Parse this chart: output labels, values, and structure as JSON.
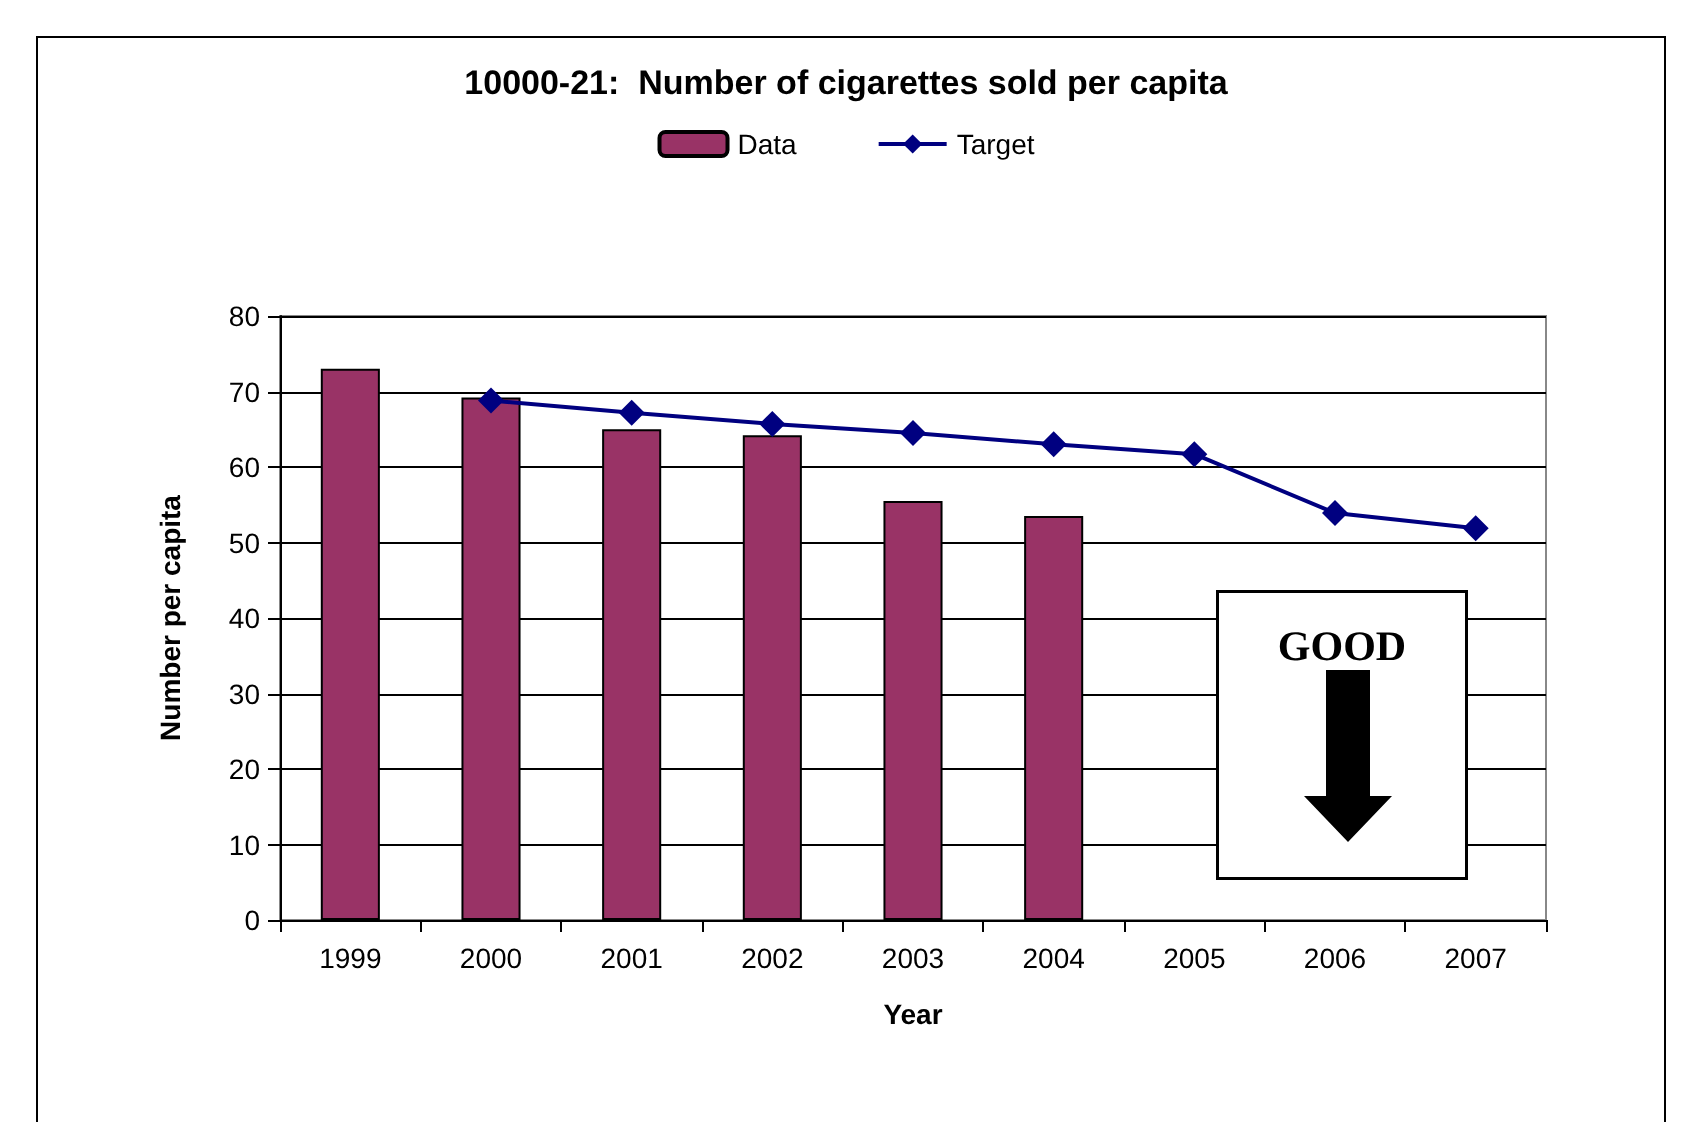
{
  "chart_data": {
    "type": "bar",
    "title": "10000-21:  Number of cigarettes sold per capita",
    "xlabel": "Year",
    "ylabel": "Number per capita",
    "categories": [
      "1999",
      "2000",
      "2001",
      "2002",
      "2003",
      "2004",
      "2005",
      "2006",
      "2007"
    ],
    "series": [
      {
        "name": "Data",
        "color": "#993366",
        "values": [
          73,
          69.2,
          65,
          64.2,
          55.5,
          53.5,
          null,
          null,
          null
        ]
      },
      {
        "name": "Target",
        "type": "line",
        "color": "#000080",
        "values": [
          null,
          68.8,
          67.2,
          65.7,
          64.5,
          63,
          61.7,
          53.9,
          51.9
        ]
      }
    ],
    "ylim": [
      0,
      80
    ],
    "yticks": [
      0,
      10,
      20,
      30,
      40,
      50,
      60,
      70,
      80
    ],
    "grid": "y",
    "legend": "top",
    "marker": "diamond",
    "line_style": "solid",
    "annotations": [
      "GOOD"
    ]
  }
}
